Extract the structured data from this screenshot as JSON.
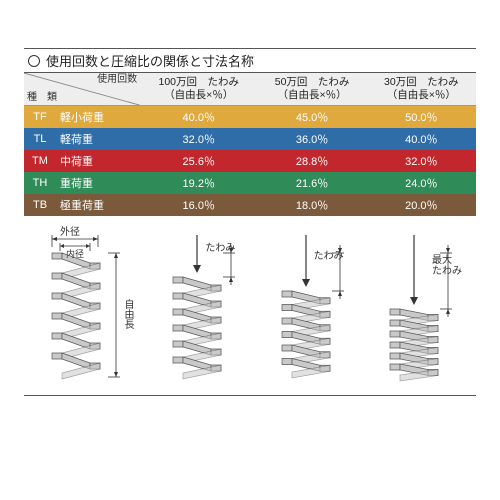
{
  "title": "使用回数と圧縮比の関係と寸法名称",
  "header": {
    "diag_top": "使用回数",
    "diag_bottom": "種　類",
    "cols": [
      {
        "line1": "100万回　たわみ",
        "line2": "（自由長×％）"
      },
      {
        "line1": "50万回　たわみ",
        "line2": "（自由長×％）"
      },
      {
        "line1": "30万回　たわみ",
        "line2": "（自由長×％）"
      }
    ]
  },
  "rows": [
    {
      "code": "TF",
      "name": "軽小荷重",
      "v1": "40.0％",
      "v2": "45.0％",
      "v3": "50.0％",
      "bg": "#e0a93e"
    },
    {
      "code": "TL",
      "name": "軽荷重",
      "v1": "32.0％",
      "v2": "36.0％",
      "v3": "40.0％",
      "bg": "#2f6da8"
    },
    {
      "code": "TM",
      "name": "中荷重",
      "v1": "25.6％",
      "v2": "28.8％",
      "v3": "32.0％",
      "bg": "#c1272d"
    },
    {
      "code": "TH",
      "name": "重荷重",
      "v1": "19.2％",
      "v2": "21.6％",
      "v3": "24.0％",
      "bg": "#2f8b57"
    },
    {
      "code": "TB",
      "name": "極重荷重",
      "v1": "16.0％",
      "v2": "18.0％",
      "v3": "20.0％",
      "bg": "#7a5a3a"
    }
  ],
  "labels": {
    "outer_dia": "外径",
    "inner_dia": "内径",
    "free_len": "自由長",
    "deflection": "たわみ",
    "max_deflection": "最大\nたわみ"
  },
  "spring_fill": "#c9c9c9",
  "spring_stroke": "#555555"
}
